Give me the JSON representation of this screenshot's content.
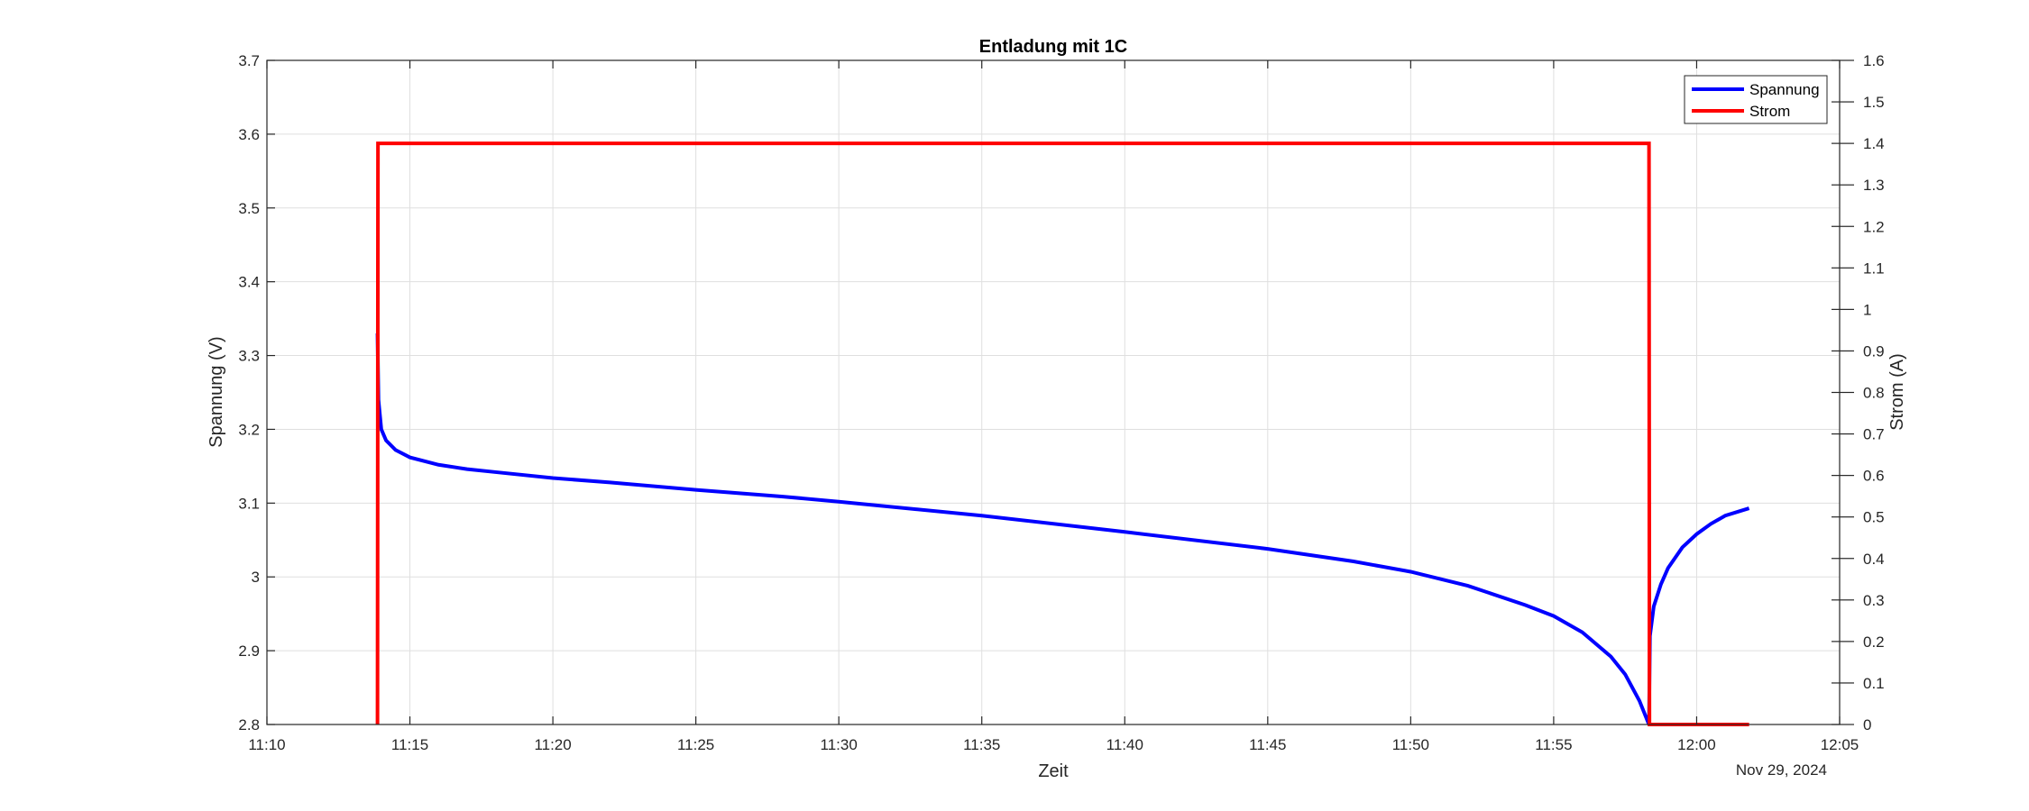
{
  "chart_data": {
    "type": "line",
    "title": "Entladung mit 1C",
    "xlabel": "Zeit",
    "x_date_label": "Nov 29, 2024",
    "x_ticks": [
      "11:10",
      "11:15",
      "11:20",
      "11:25",
      "11:30",
      "11:35",
      "11:40",
      "11:45",
      "11:50",
      "11:55",
      "12:00",
      "12:05"
    ],
    "xlim": [
      "11:10",
      "12:05"
    ],
    "y_left": {
      "label": "Spannung (V)",
      "lim": [
        2.8,
        3.7
      ],
      "ticks": [
        "2.8",
        "2.9",
        "3",
        "3.1",
        "3.2",
        "3.3",
        "3.4",
        "3.5",
        "3.6",
        "3.7"
      ]
    },
    "y_right": {
      "label": "Strom (A)",
      "lim": [
        0,
        1.6
      ],
      "ticks": [
        "0",
        "0.1",
        "0.2",
        "0.3",
        "0.4",
        "0.5",
        "0.6",
        "0.7",
        "0.8",
        "0.9",
        "1",
        "1.1",
        "1.2",
        "1.3",
        "1.4",
        "1.5",
        "1.6"
      ]
    },
    "grid": true,
    "legend_position": "top-right",
    "series": [
      {
        "name": "Spannung",
        "axis": "left",
        "color": "#0000ff",
        "points": [
          [
            "11:13:52",
            3.33
          ],
          [
            "11:13:54",
            3.24
          ],
          [
            "11:14:00",
            3.2
          ],
          [
            "11:14:10",
            3.185
          ],
          [
            "11:14:30",
            3.172
          ],
          [
            "11:15:00",
            3.162
          ],
          [
            "11:16:00",
            3.152
          ],
          [
            "11:17:00",
            3.146
          ],
          [
            "11:18:00",
            3.142
          ],
          [
            "11:20:00",
            3.134
          ],
          [
            "11:22:00",
            3.128
          ],
          [
            "11:25:00",
            3.118
          ],
          [
            "11:28:00",
            3.109
          ],
          [
            "11:30:00",
            3.102
          ],
          [
            "11:35:00",
            3.083
          ],
          [
            "11:40:00",
            3.061
          ],
          [
            "11:45:00",
            3.038
          ],
          [
            "11:48:00",
            3.021
          ],
          [
            "11:50:00",
            3.007
          ],
          [
            "11:52:00",
            2.988
          ],
          [
            "11:54:00",
            2.962
          ],
          [
            "11:55:00",
            2.947
          ],
          [
            "11:56:00",
            2.925
          ],
          [
            "11:57:00",
            2.892
          ],
          [
            "11:57:30",
            2.868
          ],
          [
            "11:58:00",
            2.832
          ],
          [
            "11:58:18",
            2.803
          ],
          [
            "11:58:20",
            2.8
          ],
          [
            "11:58:22",
            2.92
          ],
          [
            "11:58:30",
            2.96
          ],
          [
            "11:58:45",
            2.99
          ],
          [
            "11:59:00",
            3.012
          ],
          [
            "11:59:30",
            3.04
          ],
          [
            "12:00:00",
            3.058
          ],
          [
            "12:00:30",
            3.072
          ],
          [
            "12:01:00",
            3.083
          ],
          [
            "12:01:30",
            3.089
          ],
          [
            "12:01:50",
            3.093
          ]
        ]
      },
      {
        "name": "Strom",
        "axis": "right",
        "color": "#ff0000",
        "points": [
          [
            "11:13:52",
            0
          ],
          [
            "11:13:53",
            1.4
          ],
          [
            "11:58:20",
            1.4
          ],
          [
            "11:58:21",
            0
          ],
          [
            "12:01:50",
            0
          ]
        ]
      }
    ]
  }
}
